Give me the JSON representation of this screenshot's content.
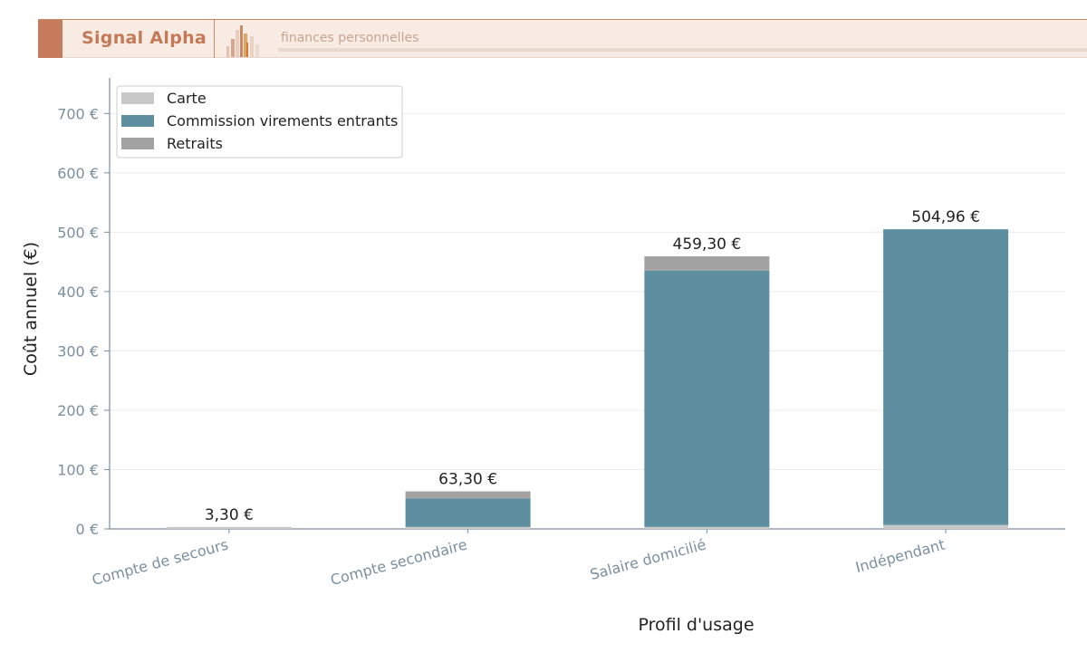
{
  "header": {
    "brand": "Signal Alpha",
    "tagline": "finances personnelles"
  },
  "chart_data": {
    "type": "bar",
    "stacked": true,
    "categories": [
      "Compte de secours",
      "Compte secondaire",
      "Salaire domicilié",
      "Indépendant"
    ],
    "series": [
      {
        "name": "Carte",
        "values": [
          3.3,
          3.3,
          3.3,
          6.6
        ],
        "color": "#c8c8c8"
      },
      {
        "name": "Commission virements entrants",
        "values": [
          0,
          48,
          432,
          498.36
        ],
        "color": "#5e8fa0"
      },
      {
        "name": "Retraits",
        "values": [
          0,
          12,
          24,
          0
        ],
        "color": "#a2a2a2"
      }
    ],
    "totals": [
      3.3,
      63.3,
      459.3,
      504.96
    ],
    "total_labels": [
      "3,30 €",
      "63,30 €",
      "459,30 €",
      "504,96 €"
    ],
    "xlabel": "Profil d'usage",
    "ylabel": "Coût annuel (€)",
    "ylim": [
      0,
      760
    ],
    "yticks": [
      0,
      100,
      200,
      300,
      400,
      500,
      600,
      700
    ],
    "ytick_labels": [
      "0 €",
      "100 €",
      "200 €",
      "300 €",
      "400 €",
      "500 €",
      "600 €",
      "700 €"
    ],
    "grid": true,
    "legend_position": "top-left"
  }
}
